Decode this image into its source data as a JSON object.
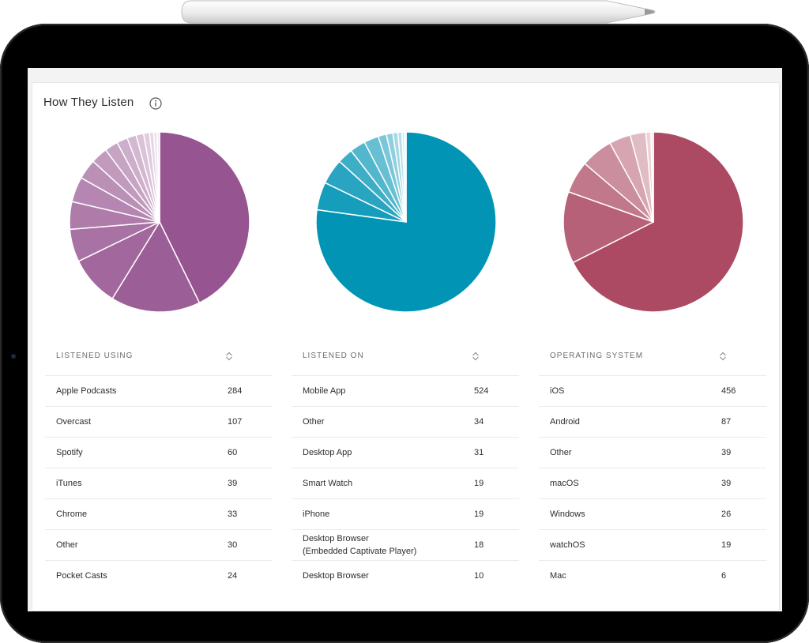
{
  "section": {
    "title": "How They Listen",
    "info_icon": "info-circle-icon"
  },
  "colors": {
    "purple_base": "#965490",
    "teal_base": "#0194b5",
    "rose_base": "#ac4a63",
    "slice_border": "#ffffff"
  },
  "tables": [
    {
      "header": "LISTENED USING",
      "sort_icon": "sort-icon",
      "rows": [
        {
          "label": "Apple Podcasts",
          "count": "284"
        },
        {
          "label": "Overcast",
          "count": "107"
        },
        {
          "label": "Spotify",
          "count": "60"
        },
        {
          "label": "iTunes",
          "count": "39"
        },
        {
          "label": "Chrome",
          "count": "33"
        },
        {
          "label": "Other",
          "count": "30"
        },
        {
          "label": "Pocket Casts",
          "count": "24"
        }
      ]
    },
    {
      "header": "LISTENED ON",
      "sort_icon": "sort-icon",
      "rows": [
        {
          "label": "Mobile App",
          "count": "524"
        },
        {
          "label": "Other",
          "count": "34"
        },
        {
          "label": "Desktop App",
          "count": "31"
        },
        {
          "label": "Smart Watch",
          "count": "19"
        },
        {
          "label": "iPhone",
          "count": "19"
        },
        {
          "label": "Desktop Browser\n(Embedded Captivate Player)",
          "count": "18"
        },
        {
          "label": "Desktop Browser",
          "count": "10"
        }
      ]
    },
    {
      "header": "OPERATING SYSTEM",
      "sort_icon": "sort-icon",
      "rows": [
        {
          "label": "iOS",
          "count": "456"
        },
        {
          "label": "Android",
          "count": "87"
        },
        {
          "label": "Other",
          "count": "39"
        },
        {
          "label": "macOS",
          "count": "39"
        },
        {
          "label": "Windows",
          "count": "26"
        },
        {
          "label": "watchOS",
          "count": "19"
        },
        {
          "label": "Mac",
          "count": "6"
        }
      ]
    }
  ],
  "chart_data": [
    {
      "type": "pie",
      "color": "#965490",
      "values": [
        284,
        107,
        60,
        39,
        33,
        30,
        24,
        20,
        16,
        13,
        11,
        9,
        7,
        5,
        4,
        3
      ]
    },
    {
      "type": "pie",
      "color": "#0194b5",
      "values": [
        524,
        34,
        31,
        19,
        19,
        18,
        10,
        8,
        6,
        5,
        3,
        2
      ]
    },
    {
      "type": "pie",
      "color": "#ac4a63",
      "values": [
        456,
        87,
        39,
        39,
        26,
        19,
        6,
        3
      ]
    }
  ]
}
